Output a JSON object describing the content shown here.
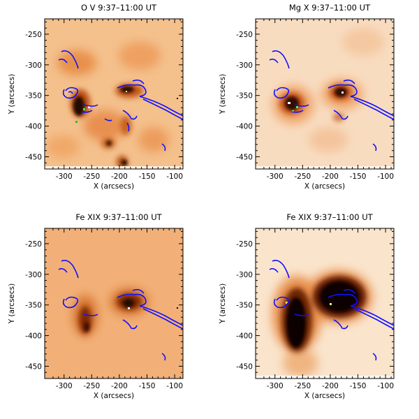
{
  "figure": {
    "panels": [
      {
        "title": "O V 9:37–11:00 UT",
        "xlabel": "X (arcsecs)",
        "ylabel": "Y (arcsecs)",
        "x_ticks": [
          "-300",
          "-250",
          "-200",
          "-150",
          "-100"
        ],
        "y_ticks": [
          "-250",
          "-300",
          "-350",
          "-400",
          "-450"
        ],
        "colormap": "white-orange-black",
        "background": "#f4c08c"
      },
      {
        "title": "Mg X 9:37–11:00 UT",
        "xlabel": "X (arcsecs)",
        "ylabel": "Y (arcsecs)",
        "x_ticks": [
          "-300",
          "-250",
          "-200",
          "-150",
          "-100"
        ],
        "y_ticks": [
          "-250",
          "-300",
          "-350",
          "-400",
          "-450"
        ],
        "colormap": "white-orange-black",
        "background": "#f8dcc0"
      },
      {
        "title": "Fe XIX 9:37–11:00 UT",
        "xlabel": "X (arcsecs)",
        "ylabel": "Y (arcsecs)",
        "x_ticks": [
          "-300",
          "-250",
          "-200",
          "-150",
          "-100"
        ],
        "y_ticks": [
          "-250",
          "-300",
          "-350",
          "-400",
          "-450"
        ],
        "colormap": "white-orange-black",
        "background": "#f2b078"
      },
      {
        "title": "Fe XIX 9:37–11:00 UT",
        "xlabel": "X (arcsecs)",
        "ylabel": "Y (arcsecs)",
        "x_ticks": [
          "-300",
          "-250",
          "-200",
          "-150",
          "-100"
        ],
        "y_ticks": [
          "-250",
          "-300",
          "-350",
          "-400",
          "-450"
        ],
        "colormap": "white-orange-black",
        "background": "#fae4cc"
      }
    ],
    "contour_color": "#1010ff"
  }
}
